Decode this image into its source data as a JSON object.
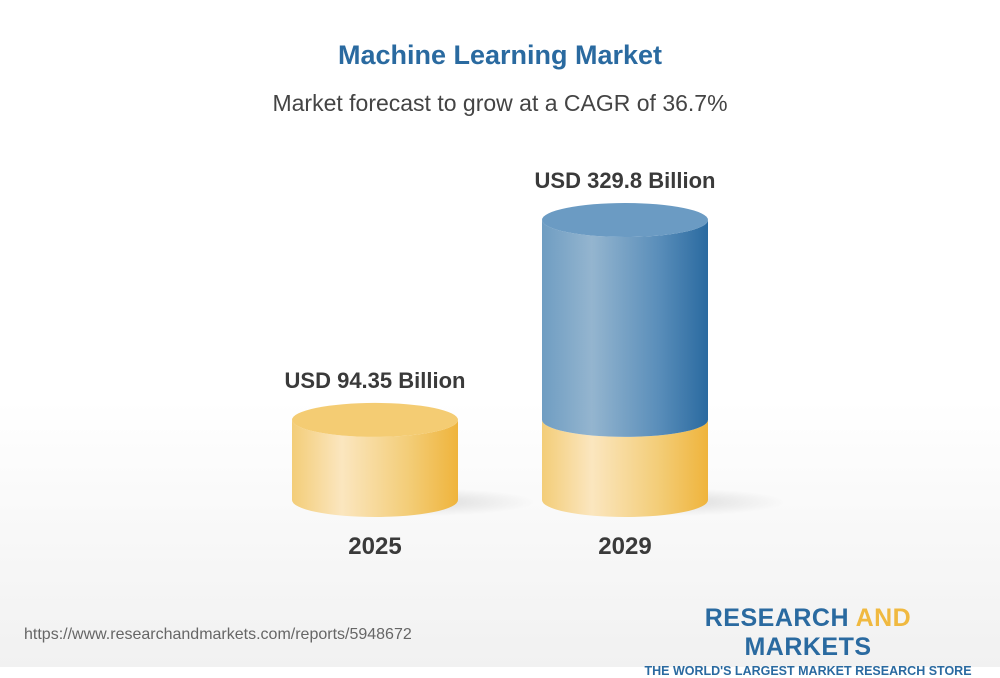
{
  "chart_data": {
    "type": "bar",
    "style": "3d-cylinder",
    "title": "Machine Learning Market",
    "subtitle": "Market forecast to grow at a CAGR of 36.7%",
    "categories": [
      "2025",
      "2029"
    ],
    "values": [
      94.35,
      329.8
    ],
    "data_labels": [
      "USD 94.35 Billion",
      "USD 329.8 Billion"
    ],
    "unit": "USD Billion",
    "colors": {
      "base": "#f2c35a",
      "growth": "#2a6aa0"
    }
  },
  "footer": {
    "url": "https://www.researchandmarkets.com/reports/5948672",
    "logo_part1": "RESEARCH ",
    "logo_part2": "AND",
    "logo_part3": " MARKETS",
    "logo_tagline": "THE WORLD'S LARGEST MARKET RESEARCH STORE"
  }
}
